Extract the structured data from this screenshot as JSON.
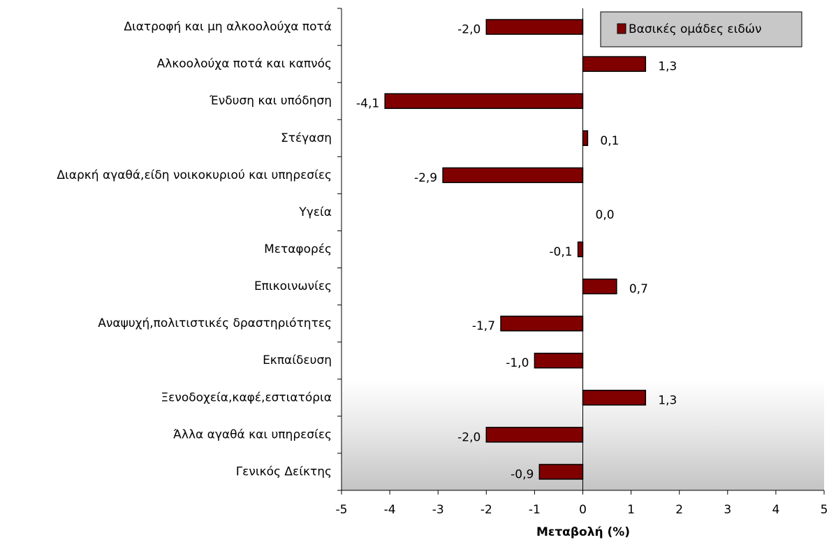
{
  "chart_data": {
    "type": "bar",
    "orientation": "horizontal",
    "categories": [
      "Διατροφή και μη αλκοολούχα ποτά",
      "Αλκοολούχα ποτά και καπνός",
      "Ένδυση και υπόδηση",
      "Στέγαση",
      "Διαρκή αγαθά,είδη νοικοκυριού και υπηρεσίες",
      "Υγεία",
      "Μεταφορές",
      "Επικοινωνίες",
      "Αναψυχή,πολιτιστικές δραστηριότητες",
      "Εκπαίδευση",
      "Ξενοδοχεία,καφέ,εστιατόρια",
      "Άλλα αγαθά και υπηρεσίες",
      "Γενικός Δείκτης"
    ],
    "series": [
      {
        "name": "Βασικές ομάδες ειδών",
        "color": "#800000",
        "values": [
          -2.0,
          1.3,
          -4.1,
          0.1,
          -2.9,
          0.0,
          -0.1,
          0.7,
          -1.7,
          -1.0,
          1.3,
          -2.0,
          -0.9
        ],
        "value_labels": [
          "-2,0",
          "1,3",
          "-4,1",
          "0,1",
          "-2,9",
          "0,0",
          "-0,1",
          "0,7",
          "-1,7",
          "-1,0",
          "1,3",
          "-2,0",
          "-0,9"
        ]
      }
    ],
    "x_label": "Μεταβολή (%)",
    "xlim": [
      -5,
      5
    ],
    "xticks": [
      -5,
      -4,
      -3,
      -2,
      -1,
      0,
      1,
      2,
      3,
      4,
      5
    ],
    "legend": "top-right"
  }
}
